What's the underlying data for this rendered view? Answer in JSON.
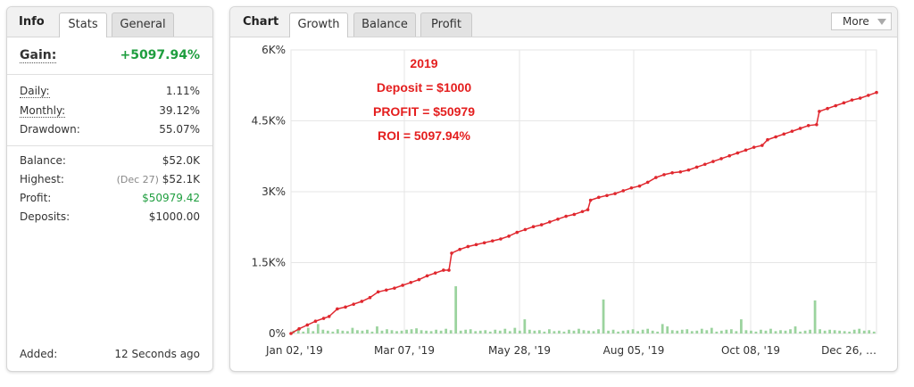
{
  "left": {
    "title": "Info",
    "tabs": [
      "Stats",
      "General"
    ],
    "gain_label": "Gain:",
    "gain_value": "+5097.94%",
    "daily_label": "Daily:",
    "daily_value": "1.11%",
    "monthly_label": "Monthly:",
    "monthly_value": "39.12%",
    "drawdown_label": "Drawdown:",
    "drawdown_value": "55.07%",
    "balance_label": "Balance:",
    "balance_value": "$52.0K",
    "highest_label": "Highest:",
    "highest_date": "(Dec 27)",
    "highest_value": "$52.1K",
    "profit_label": "Profit:",
    "profit_value": "$50979.42",
    "deposits_label": "Deposits:",
    "deposits_value": "$1000.00",
    "added_label": "Added:",
    "added_value": "12 Seconds ago"
  },
  "right": {
    "title": "Chart",
    "tabs": [
      "Growth",
      "Balance",
      "Profit"
    ],
    "more_label": "More"
  },
  "colors": {
    "line": "#e0282f",
    "bars": "#9bd39e",
    "annotation": "#e41e1e",
    "green_value": "#1f9e3f"
  },
  "chart_data": {
    "type": "line",
    "annotations": [
      "2019",
      "Deposit = $1000",
      "PROFIT = $50979",
      "ROI = 5097.94%"
    ],
    "y_ticks": [
      "0%",
      "1.5K%",
      "3K%",
      "4.5K%",
      "6K%"
    ],
    "ylim": [
      0,
      6000
    ],
    "x_ticks": [
      "Jan 02, '19",
      "Mar 07, '19",
      "May 28, '19",
      "Aug 05, '19",
      "Oct 08, '19",
      "Dec 26, …"
    ],
    "grid": true,
    "series": [
      {
        "type": "line",
        "points": [
          [
            0,
            0
          ],
          [
            6,
            100
          ],
          [
            12,
            180
          ],
          [
            18,
            260
          ],
          [
            24,
            320
          ],
          [
            28,
            360
          ],
          [
            34,
            520
          ],
          [
            40,
            560
          ],
          [
            46,
            620
          ],
          [
            52,
            680
          ],
          [
            58,
            760
          ],
          [
            64,
            880
          ],
          [
            70,
            920
          ],
          [
            76,
            960
          ],
          [
            82,
            1020
          ],
          [
            88,
            1080
          ],
          [
            94,
            1140
          ],
          [
            100,
            1220
          ],
          [
            106,
            1280
          ],
          [
            112,
            1340
          ],
          [
            116,
            1340
          ],
          [
            118,
            1700
          ],
          [
            124,
            1780
          ],
          [
            130,
            1840
          ],
          [
            136,
            1880
          ],
          [
            142,
            1920
          ],
          [
            148,
            1960
          ],
          [
            154,
            2000
          ],
          [
            160,
            2060
          ],
          [
            166,
            2140
          ],
          [
            172,
            2200
          ],
          [
            178,
            2260
          ],
          [
            184,
            2300
          ],
          [
            190,
            2360
          ],
          [
            196,
            2420
          ],
          [
            202,
            2480
          ],
          [
            208,
            2520
          ],
          [
            214,
            2580
          ],
          [
            218,
            2620
          ],
          [
            220,
            2820
          ],
          [
            226,
            2880
          ],
          [
            232,
            2920
          ],
          [
            238,
            2960
          ],
          [
            244,
            3020
          ],
          [
            250,
            3080
          ],
          [
            256,
            3120
          ],
          [
            262,
            3200
          ],
          [
            268,
            3300
          ],
          [
            274,
            3360
          ],
          [
            280,
            3400
          ],
          [
            286,
            3420
          ],
          [
            292,
            3460
          ],
          [
            298,
            3520
          ],
          [
            304,
            3580
          ],
          [
            310,
            3640
          ],
          [
            316,
            3700
          ],
          [
            322,
            3760
          ],
          [
            328,
            3820
          ],
          [
            334,
            3880
          ],
          [
            340,
            3940
          ],
          [
            346,
            3980
          ],
          [
            350,
            4100
          ],
          [
            356,
            4160
          ],
          [
            362,
            4220
          ],
          [
            368,
            4280
          ],
          [
            374,
            4340
          ],
          [
            380,
            4400
          ],
          [
            386,
            4420
          ],
          [
            388,
            4700
          ],
          [
            394,
            4760
          ],
          [
            400,
            4820
          ],
          [
            406,
            4880
          ],
          [
            412,
            4940
          ],
          [
            418,
            4980
          ],
          [
            424,
            5040
          ],
          [
            430,
            5100
          ]
        ]
      },
      {
        "type": "bar",
        "values": [
          60,
          100,
          40,
          120,
          50,
          200,
          80,
          60,
          40,
          90,
          60,
          50,
          120,
          70,
          60,
          80,
          40,
          150,
          60,
          90,
          70,
          50,
          60,
          80,
          90,
          110,
          70,
          60,
          50,
          80,
          60,
          100,
          70,
          1000,
          60,
          80,
          90,
          50,
          60,
          70,
          40,
          80,
          60,
          100,
          50,
          120,
          60,
          300,
          80,
          60,
          70,
          40,
          90,
          50,
          60,
          40,
          80,
          60,
          100,
          70,
          60,
          50,
          90,
          720,
          60,
          80,
          40,
          60,
          70,
          90,
          50,
          80,
          100,
          60,
          40,
          200,
          150,
          70,
          60,
          80,
          90,
          50,
          60,
          100,
          70,
          120,
          40,
          60,
          80,
          90,
          50,
          300,
          70,
          60,
          40,
          80,
          60,
          100,
          50,
          70,
          60,
          90,
          150,
          40,
          60,
          80,
          700,
          90,
          60,
          80,
          70,
          60,
          50,
          40,
          80,
          100,
          60,
          70,
          40
        ],
        "ylim": [
          0,
          6000
        ]
      }
    ]
  }
}
